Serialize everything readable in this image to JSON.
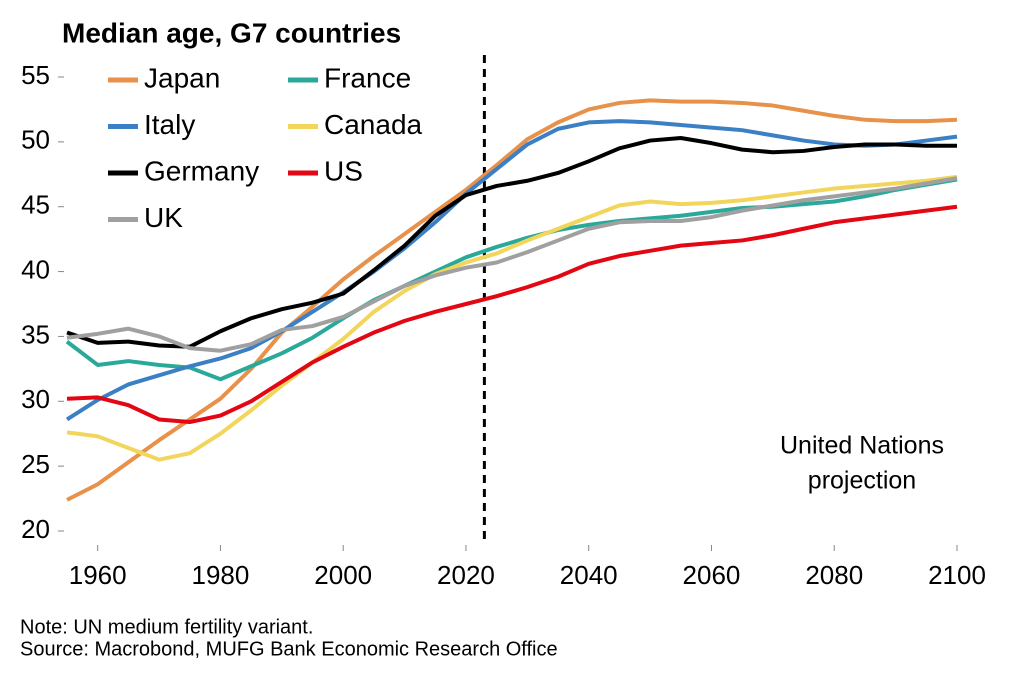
{
  "chart_data": {
    "type": "line",
    "title": "Median age, G7 countries",
    "x": [
      1955,
      1960,
      1965,
      1970,
      1975,
      1980,
      1985,
      1990,
      1995,
      2000,
      2005,
      2010,
      2015,
      2020,
      2025,
      2030,
      2035,
      2040,
      2045,
      2050,
      2055,
      2060,
      2065,
      2070,
      2075,
      2080,
      2085,
      2090,
      2095,
      2100
    ],
    "series": [
      {
        "name": "Japan",
        "color": "#e8914a",
        "values": [
          22.4,
          23.6,
          25.3,
          27.0,
          28.6,
          30.2,
          32.5,
          35.3,
          37.3,
          39.4,
          41.2,
          42.9,
          44.6,
          46.3,
          48.2,
          50.2,
          51.5,
          52.5,
          53.0,
          53.2,
          53.1,
          53.1,
          53.0,
          52.8,
          52.4,
          52.0,
          51.7,
          51.6,
          51.6,
          51.7
        ]
      },
      {
        "name": "France",
        "color": "#2aa99b",
        "values": [
          34.6,
          32.8,
          33.1,
          32.8,
          32.6,
          31.7,
          32.7,
          33.7,
          34.9,
          36.4,
          37.8,
          38.9,
          40.0,
          41.1,
          41.9,
          42.6,
          43.2,
          43.6,
          43.9,
          44.1,
          44.3,
          44.6,
          44.9,
          45.0,
          45.2,
          45.4,
          45.8,
          46.3,
          46.7,
          47.1
        ]
      },
      {
        "name": "Italy",
        "color": "#3b7fc4",
        "values": [
          28.6,
          30.1,
          31.3,
          32.0,
          32.7,
          33.3,
          34.1,
          35.4,
          36.9,
          38.4,
          40.0,
          41.8,
          43.8,
          46.0,
          47.9,
          49.8,
          51.0,
          51.5,
          51.6,
          51.5,
          51.3,
          51.1,
          50.9,
          50.5,
          50.1,
          49.8,
          49.7,
          49.8,
          50.1,
          50.4
        ]
      },
      {
        "name": "Canada",
        "color": "#f2d55b",
        "values": [
          27.6,
          27.3,
          26.4,
          25.5,
          26.0,
          27.5,
          29.3,
          31.2,
          33.0,
          34.8,
          36.9,
          38.5,
          39.8,
          40.7,
          41.4,
          42.4,
          43.3,
          44.2,
          45.1,
          45.4,
          45.2,
          45.3,
          45.5,
          45.8,
          46.1,
          46.4,
          46.6,
          46.8,
          47.0,
          47.3
        ]
      },
      {
        "name": "Germany",
        "color": "#000000",
        "values": [
          35.3,
          34.5,
          34.6,
          34.3,
          34.2,
          35.4,
          36.4,
          37.1,
          37.6,
          38.3,
          40.1,
          42.0,
          44.3,
          45.9,
          46.6,
          47.0,
          47.6,
          48.5,
          49.5,
          50.1,
          50.3,
          49.9,
          49.4,
          49.2,
          49.3,
          49.6,
          49.8,
          49.8,
          49.7,
          49.7
        ]
      },
      {
        "name": "US",
        "color": "#e30613",
        "values": [
          30.2,
          30.3,
          29.7,
          28.6,
          28.4,
          28.9,
          30.0,
          31.5,
          33.0,
          34.2,
          35.3,
          36.2,
          36.9,
          37.5,
          38.1,
          38.8,
          39.6,
          40.6,
          41.2,
          41.6,
          42.0,
          42.2,
          42.4,
          42.8,
          43.3,
          43.8,
          44.1,
          44.4,
          44.7,
          45.0
        ]
      },
      {
        "name": "UK",
        "color": "#a0a0a0",
        "values": [
          34.9,
          35.2,
          35.6,
          35.0,
          34.1,
          33.9,
          34.4,
          35.5,
          35.8,
          36.5,
          37.7,
          38.9,
          39.7,
          40.3,
          40.7,
          41.5,
          42.4,
          43.3,
          43.8,
          43.9,
          43.9,
          44.2,
          44.7,
          45.1,
          45.5,
          45.8,
          46.1,
          46.4,
          46.8,
          47.2
        ]
      }
    ],
    "xlim": [
      1955,
      2100
    ],
    "xticks": [
      1960,
      1980,
      2000,
      2020,
      2040,
      2060,
      2080,
      2100
    ],
    "ylim": [
      20,
      55
    ],
    "yticks": [
      20,
      25,
      30,
      35,
      40,
      45,
      50,
      55
    ],
    "vline_x": 2023,
    "annotation": [
      "United Nations",
      "projection"
    ],
    "notes": [
      "Note: UN medium fertility variant.",
      "Source: Macrobond, MUFG Bank Economic Research Office"
    ]
  }
}
